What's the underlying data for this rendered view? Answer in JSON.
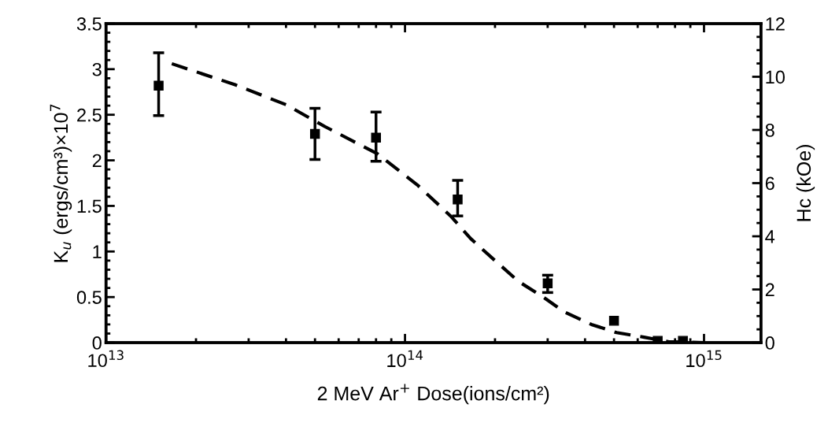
{
  "chart_data": {
    "type": "line",
    "xlabel": "2 MeV Ar$^{+}$ Dose(ions/cm²)",
    "ylabel": "K$_{u}$ (ergs/cm³)×10$^{7}$",
    "y2label": "Hc (kOe)",
    "log": "x",
    "xlim": [
      10000000000000.0,
      1550000000000000.0
    ],
    "xticks": [
      {
        "value": 10000000000000.0,
        "label": "10$^{13}$"
      },
      {
        "value": 100000000000000.0,
        "label": "10$^{14}$"
      },
      {
        "value": 1000000000000000.0,
        "label": "10$^{15}$"
      }
    ],
    "ylim": [
      0,
      3.5
    ],
    "yticks": [
      0,
      0.5,
      1,
      1.5,
      2,
      2.5,
      3,
      3.5
    ],
    "y2lim": [
      0,
      12
    ],
    "y2ticks": [
      0,
      2,
      4,
      6,
      8,
      10,
      12
    ],
    "grid": false,
    "legend": false,
    "series": [
      {
        "type": "scatter",
        "color": "#000000",
        "marker": "square",
        "x": [
          15000000000000.0,
          50000000000000.0,
          80000000000000.0,
          150000000000000.0,
          300000000000000.0,
          500000000000000.0,
          700000000000000.0,
          850000000000000.0
        ],
        "values": [
          2.82,
          2.29,
          2.25,
          1.57,
          0.65,
          0.24,
          0.02,
          0.02
        ],
        "errors": [
          [
            2.49,
            3.18
          ],
          [
            2.01,
            2.57
          ],
          [
            1.99,
            2.53
          ],
          [
            1.39,
            1.78
          ],
          [
            0.55,
            0.74
          ],
          null,
          null,
          null
        ]
      },
      {
        "color": "#000000",
        "line_style": "dashed",
        "marker": "none",
        "x": [
          16600000000000.0,
          27000000000000.0,
          40000000000000.0,
          54000000000000.0,
          81000000000000.0,
          110000000000000.0,
          142000000000000.0,
          166000000000000.0,
          200000000000000.0,
          240000000000000.0,
          290000000000000.0,
          340000000000000.0,
          420000000000000.0,
          510000000000000.0,
          630000000000000.0,
          760000000000000.0,
          1000000000000000.0
        ],
        "values": [
          3.06,
          2.83,
          2.61,
          2.37,
          2.07,
          1.73,
          1.39,
          1.14,
          0.9,
          0.67,
          0.5,
          0.34,
          0.2,
          0.11,
          0.06,
          0.01,
          0
        ]
      }
    ]
  }
}
